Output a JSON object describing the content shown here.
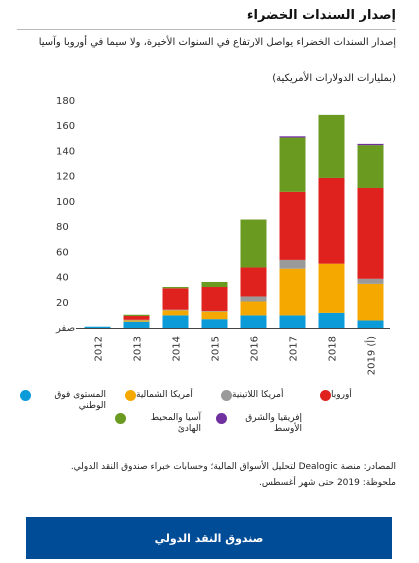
{
  "header": {
    "title": "إصدار السندات الخضراء",
    "subtitle": "إصدار السندات الخضراء يواصل الارتفاع في السنوات الأخيرة، ولا سيما في أوروبا وآسيا",
    "units": "(بمليارات الدولارات الأمريكية)"
  },
  "chart_data": {
    "type": "bar",
    "stacked": true,
    "categories": [
      "2012",
      "2013",
      "2014",
      "2015",
      "2016",
      "2017",
      "2018",
      "2019 (أ)"
    ],
    "series": [
      {
        "name": "المستوى فوق الوطني",
        "color": "#0a9bd8",
        "values": [
          1,
          5,
          10,
          7,
          10,
          10,
          12,
          6
        ]
      },
      {
        "name": "أمريكا الشمالية",
        "color": "#f5a900",
        "values": [
          0,
          1,
          4,
          6,
          11,
          37,
          39,
          29
        ]
      },
      {
        "name": "أمريكا اللاتينية",
        "color": "#9a9a9a",
        "values": [
          0,
          0.5,
          0.5,
          0.5,
          4,
          7,
          0,
          4
        ]
      },
      {
        "name": "أوروبا",
        "color": "#e0221f",
        "values": [
          0,
          3,
          17,
          19,
          23,
          54,
          68,
          72
        ]
      },
      {
        "name": "آسيا والمحيط الهادئ",
        "color": "#6a9a1f",
        "values": [
          0,
          1,
          1,
          4,
          38,
          43,
          50,
          34
        ]
      },
      {
        "name": "إفريقيا والشرق الأوسط",
        "color": "#7030a0",
        "values": [
          0,
          0,
          0,
          0,
          0,
          1,
          0,
          1
        ]
      }
    ],
    "ylim": [
      0,
      180
    ],
    "yticks": [
      0,
      20,
      40,
      60,
      80,
      100,
      120,
      140,
      160,
      180
    ],
    "zero_label": "صفر",
    "legend_position": "bottom",
    "grid": false
  },
  "footer": {
    "source": "المصادر: منصة Dealogic لتحليل الأسواق المالية؛ وحسابات خبراء صندوق النقد الدولي.",
    "note": "ملحوظة: 2019 حتى شهر أغسطس.",
    "brand": "صندوق النقد الدولي",
    "brand_color": "#004c97"
  }
}
